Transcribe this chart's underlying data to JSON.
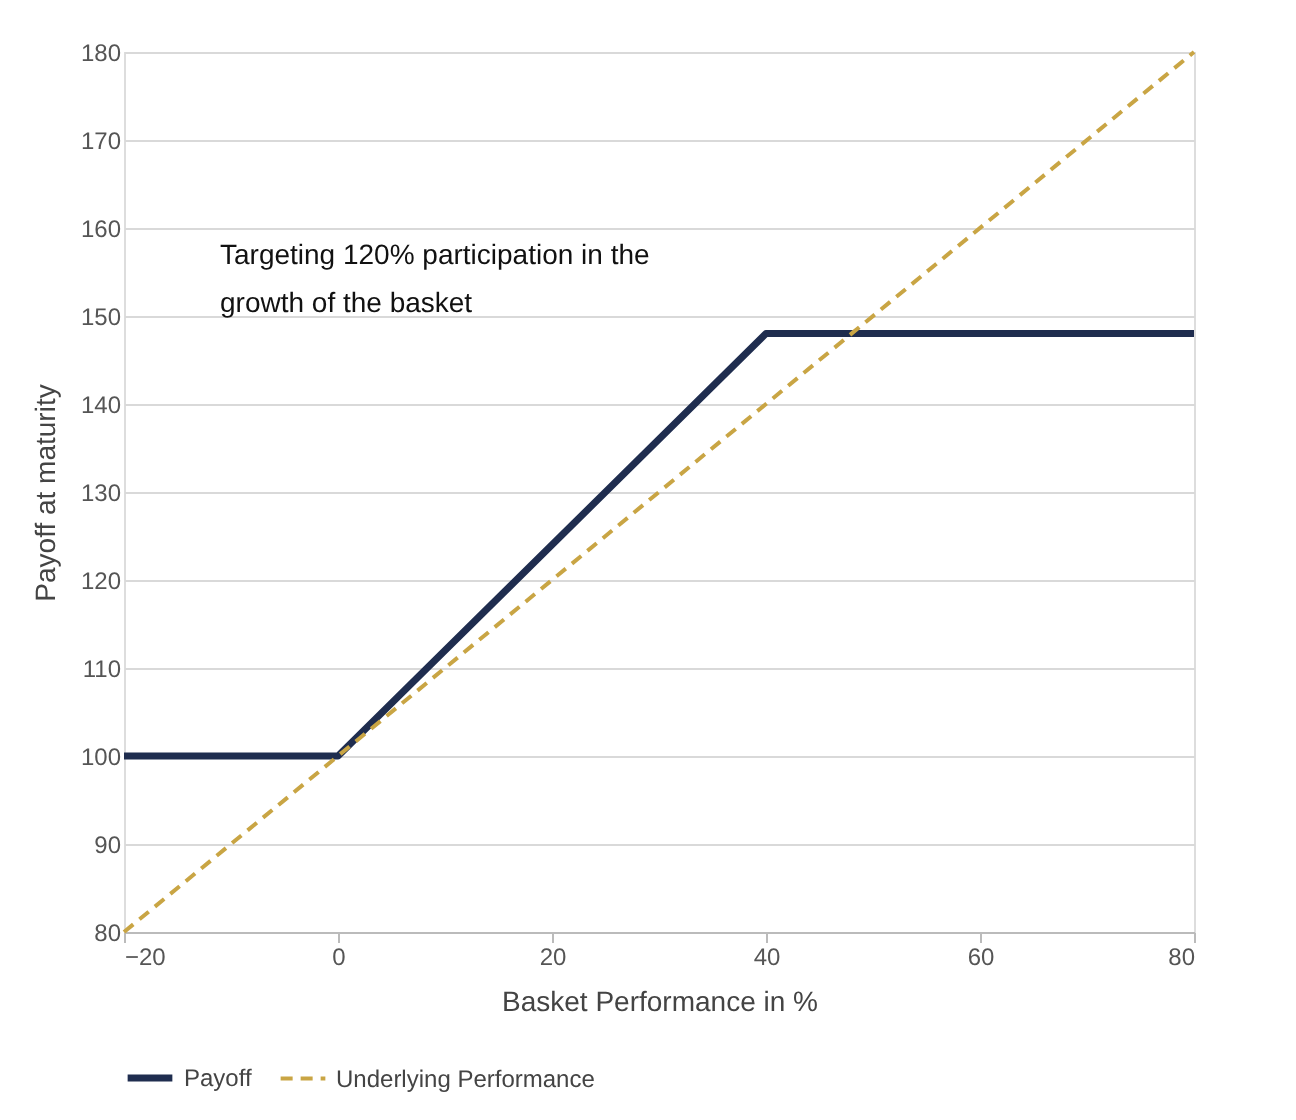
{
  "chart_data": {
    "type": "line",
    "xlabel": "Basket Performance in %",
    "ylabel": "Payoff at maturity",
    "annotations": [
      "Targeting 120% participation in the growth of the basket"
    ],
    "series": [
      {
        "name": "Payoff",
        "color": "#1f2d4f",
        "line_style": "solid",
        "x": [
          -20,
          0,
          40,
          80
        ],
        "values": [
          100,
          100,
          148,
          148
        ]
      },
      {
        "name": "Underlying Performance",
        "color": "#c9a544",
        "line_style": "dashed",
        "x": [
          -20,
          80
        ],
        "values": [
          80,
          180
        ]
      }
    ],
    "xlim": [
      -20,
      80
    ],
    "xticks": [
      -20,
      0,
      20,
      40,
      60,
      80
    ],
    "ylim": [
      80,
      180
    ],
    "yticks": [
      80,
      90,
      100,
      110,
      120,
      130,
      140,
      150,
      160,
      170,
      180
    ],
    "grid": "y",
    "legend": "bottom",
    "marker": "none"
  }
}
